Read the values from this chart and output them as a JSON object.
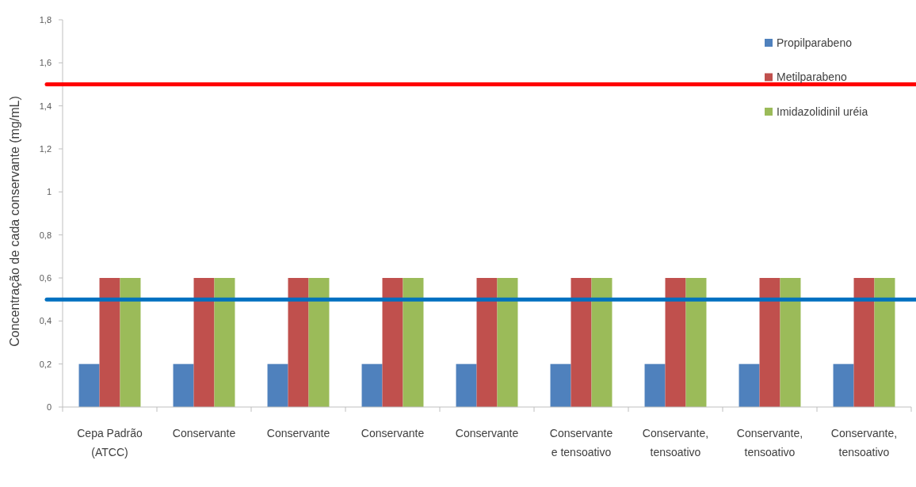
{
  "chart_data": {
    "type": "bar",
    "categories": [
      "Cepa Padrão (ATCC)",
      "Conservante",
      "Conservante",
      "Conservante",
      "Conservante",
      "Conservante e tensoativo",
      "Conservante, tensoativo",
      "Conservante, tensoativo",
      "Conservante, tensoativo"
    ],
    "series": [
      {
        "name": "Propilparabeno",
        "color": "#4f81bd",
        "values": [
          0.2,
          0.2,
          0.2,
          0.2,
          0.2,
          0.2,
          0.2,
          0.2,
          0.2
        ]
      },
      {
        "name": "Metilparabeno",
        "color": "#c0504d",
        "values": [
          0.6,
          0.6,
          0.6,
          0.6,
          0.6,
          0.6,
          0.6,
          0.6,
          0.6
        ]
      },
      {
        "name": "Imidazolidinil uréia",
        "color": "#9bbb59",
        "values": [
          0.6,
          0.6,
          0.6,
          0.6,
          0.6,
          0.6,
          0.6,
          0.6,
          0.6
        ]
      }
    ],
    "ylabel": "Concentração de cada conservante (mg/mL)",
    "ylim": [
      0,
      1.8
    ],
    "yticks": [
      0,
      {
        "value": 0.2,
        "label": "0,2"
      },
      {
        "value": 0.4,
        "label": "0,4"
      },
      {
        "value": 0.6,
        "label": "0,6"
      },
      {
        "value": 0.8,
        "label": "0,8"
      },
      1,
      {
        "value": 1.2,
        "label": "1,2"
      },
      {
        "value": 1.4,
        "label": "1,4"
      },
      {
        "value": 1.6,
        "label": "1,6"
      },
      {
        "value": 1.8,
        "label": "1,8"
      }
    ],
    "legend": "top right",
    "ref_lines": [
      {
        "axis": "y",
        "value": 1.5,
        "color": "#ff0000"
      },
      {
        "axis": "y",
        "value": 0.5,
        "color": "#0070c0"
      }
    ]
  }
}
